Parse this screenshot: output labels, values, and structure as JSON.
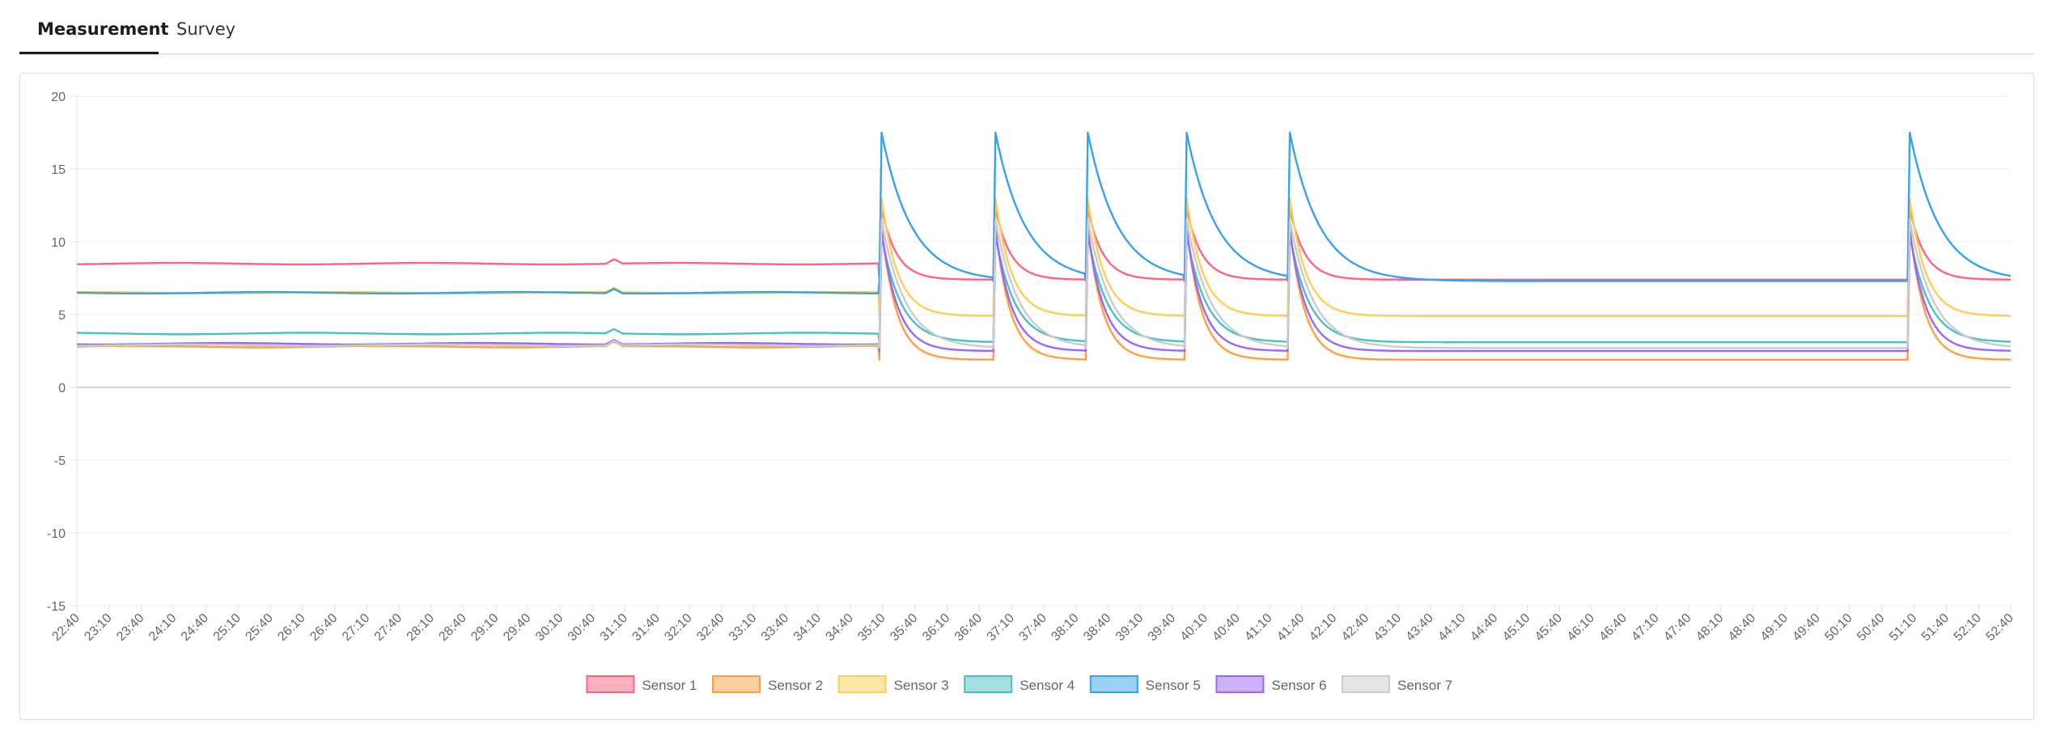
{
  "tabs": [
    {
      "label": "Measurement",
      "active": true
    },
    {
      "label": "Survey",
      "active": false
    }
  ],
  "chart_data": {
    "type": "line",
    "title": "",
    "xlabel": "",
    "ylabel": "",
    "ylim": [
      -15,
      20
    ],
    "y_ticks": [
      20,
      15,
      10,
      5,
      0,
      -5,
      -10,
      -15
    ],
    "grid": true,
    "legend_position": "bottom-center",
    "x_start_seconds": 1360,
    "x_end_seconds": 3160,
    "x_ticks": [
      "22:40",
      "23:10",
      "23:40",
      "24:10",
      "24:40",
      "25:10",
      "25:40",
      "26:10",
      "26:40",
      "27:10",
      "27:40",
      "28:10",
      "28:40",
      "29:10",
      "29:40",
      "30:10",
      "30:40",
      "31:10",
      "31:40",
      "32:10",
      "32:40",
      "33:10",
      "33:40",
      "34:10",
      "34:40",
      "35:10",
      "35:40",
      "36:10",
      "36:40",
      "37:10",
      "37:40",
      "38:10",
      "38:40",
      "39:10",
      "39:40",
      "40:10",
      "40:40",
      "41:10",
      "41:40",
      "42:10",
      "42:40",
      "43:10",
      "43:40",
      "44:10",
      "44:40",
      "45:10",
      "45:40",
      "46:10",
      "46:40",
      "47:10",
      "47:40",
      "48:10",
      "48:40",
      "49:10",
      "49:40",
      "50:10",
      "50:40",
      "51:10",
      "51:40",
      "52:10",
      "52:40"
    ],
    "pulse_times_seconds": [
      2107,
      2213,
      2299,
      2391,
      2487,
      3064
    ],
    "pulse_end_seconds": [
      2213,
      2299,
      2391,
      2487,
      3064,
      3160
    ],
    "series": [
      {
        "name": "Sensor 1",
        "color": "#ff6384",
        "fill": "#ffb1c1",
        "baseline": 8.5,
        "peak": 12.3,
        "settle": 7.4,
        "tau_seconds": 14
      },
      {
        "name": "Sensor 2",
        "color": "#ff9f40",
        "fill": "#ffcf9f",
        "baseline": 2.8,
        "peak": 11.0,
        "settle": 1.9,
        "tau_seconds": 14
      },
      {
        "name": "Sensor 3",
        "color": "#ffcd56",
        "fill": "#ffe6aa",
        "baseline": 6.5,
        "peak": 13.0,
        "settle": 4.9,
        "tau_seconds": 15
      },
      {
        "name": "Sensor 4",
        "color": "#4bc0c0",
        "fill": "#a5dfdf",
        "baseline": 3.7,
        "peak": 10.5,
        "settle": 3.1,
        "tau_seconds": 18
      },
      {
        "name": "Sensor 5",
        "color": "#36a2eb",
        "fill": "#9ad0f5",
        "baseline": 6.5,
        "peak": 17.5,
        "settle": 7.3,
        "tau_seconds": 28
      },
      {
        "name": "Sensor 6",
        "color": "#9966ff",
        "fill": "#ccb2ff",
        "baseline": 3.0,
        "peak": 10.8,
        "settle": 2.5,
        "tau_seconds": 15
      },
      {
        "name": "Sensor 7",
        "color": "#c9cbcf",
        "fill": "#e4e5e7",
        "baseline": 2.9,
        "peak": 11.5,
        "settle": 2.7,
        "tau_seconds": 22
      }
    ]
  }
}
